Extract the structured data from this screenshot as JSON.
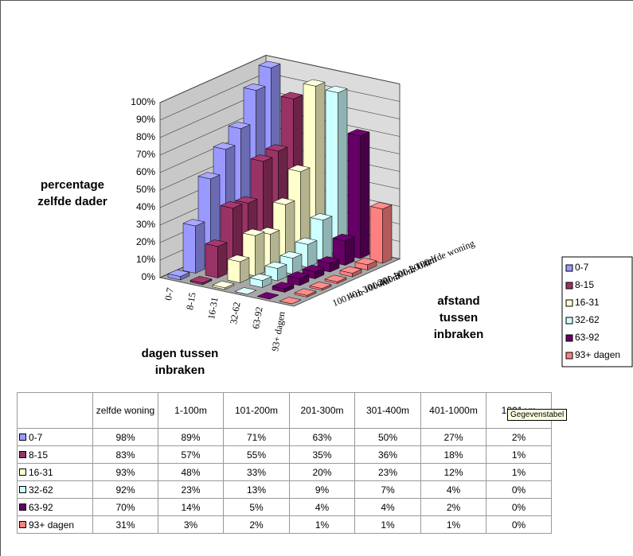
{
  "chart_data": {
    "type": "bar3d",
    "y_label": [
      "percentage",
      "zelfde dader"
    ],
    "x_label": [
      "dagen tussen",
      "inbraken"
    ],
    "z_label": [
      "afstand",
      "tussen",
      "inbraken"
    ],
    "categories": [
      "zelfde woning",
      "1-100m",
      "101-200m",
      "201-300m",
      "301-400m",
      "401-1000m",
      "1001+m"
    ],
    "series": [
      {
        "name": "0-7",
        "color": "#9999ff",
        "values": [
          98,
          89,
          71,
          63,
          50,
          27,
          2
        ],
        "value_labels": [
          "98%",
          "89%",
          "71%",
          "63%",
          "50%",
          "27%",
          "2%"
        ]
      },
      {
        "name": "8-15",
        "color": "#993366",
        "values": [
          83,
          57,
          55,
          35,
          36,
          18,
          1
        ],
        "value_labels": [
          "83%",
          "57%",
          "55%",
          "35%",
          "36%",
          "18%",
          "1%"
        ]
      },
      {
        "name": "16-31",
        "color": "#ffffcc",
        "values": [
          93,
          48,
          33,
          20,
          23,
          12,
          1
        ],
        "value_labels": [
          "93%",
          "48%",
          "33%",
          "20%",
          "23%",
          "12%",
          "1%"
        ]
      },
      {
        "name": "32-62",
        "color": "#ccffff",
        "values": [
          92,
          23,
          13,
          9,
          7,
          4,
          0
        ],
        "value_labels": [
          "92%",
          "23%",
          "13%",
          "9%",
          "7%",
          "4%",
          "0%"
        ]
      },
      {
        "name": "63-92",
        "color": "#660066",
        "values": [
          70,
          14,
          5,
          4,
          4,
          2,
          0
        ],
        "value_labels": [
          "70%",
          "14%",
          "5%",
          "4%",
          "4%",
          "2%",
          "0%"
        ]
      },
      {
        "name": "93+ dagen",
        "color": "#ff8080",
        "values": [
          31,
          3,
          2,
          1,
          1,
          1,
          0
        ],
        "value_labels": [
          "31%",
          "3%",
          "2%",
          "1%",
          "1%",
          "1%",
          "0%"
        ]
      }
    ],
    "ylim": [
      0,
      100
    ],
    "yticks": [
      {
        "value": 0,
        "label": "0%"
      },
      {
        "value": 10,
        "label": "10%"
      },
      {
        "value": 20,
        "label": "20%"
      },
      {
        "value": 30,
        "label": "30%"
      },
      {
        "value": 40,
        "label": "40%"
      },
      {
        "value": 50,
        "label": "50%"
      },
      {
        "value": 60,
        "label": "60%"
      },
      {
        "value": 70,
        "label": "70%"
      },
      {
        "value": 80,
        "label": "80%"
      },
      {
        "value": 90,
        "label": "90%"
      },
      {
        "value": 100,
        "label": "100%"
      }
    ],
    "grid": true,
    "legend": "right",
    "tooltip": "Gegevenstabel"
  }
}
